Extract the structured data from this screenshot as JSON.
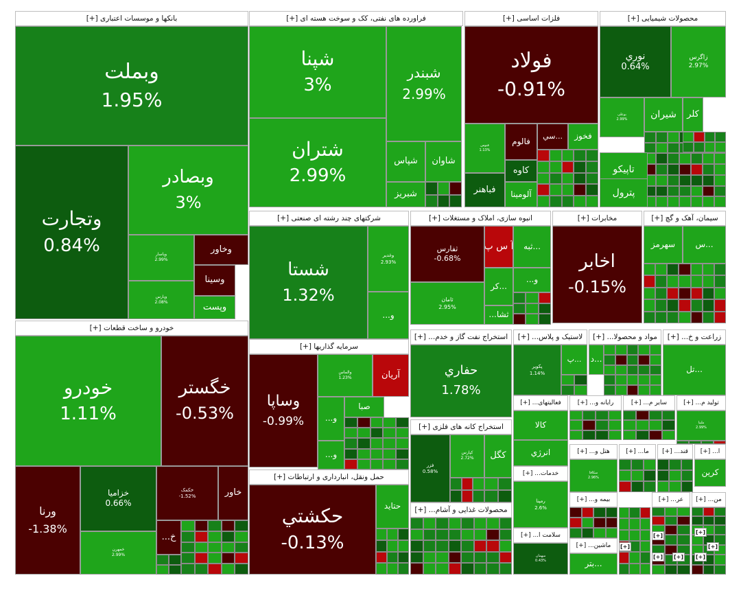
{
  "colors": {
    "bright_green": "#1fa51b",
    "mid_green": "#17811a",
    "dark_green": "#0d5c0f",
    "dark_red": "#4b0101",
    "red": "#b9070a",
    "header_bg": "#ffffff"
  },
  "chart_data": {
    "type": "treemap",
    "title": "",
    "sectors": [
      {
        "name": "بانکها و موسسات اعتباری [+]",
        "stocks": [
          {
            "name": "وبملت",
            "change": "1.95%"
          },
          {
            "name": "وتجارت",
            "change": "0.84%"
          },
          {
            "name": "وبصادر",
            "change": "3%"
          },
          {
            "name": "وخاور",
            "change": ""
          },
          {
            "name": "وپاسار",
            "change": "2.99%"
          },
          {
            "name": "وسینا",
            "change": ""
          },
          {
            "name": "وپارس",
            "change": "2.08%"
          },
          {
            "name": "وپست",
            "change": ""
          }
        ]
      },
      {
        "name": "فراورده های نفتی، کک و سوخت هسته ای [+]",
        "stocks": [
          {
            "name": "شپنا",
            "change": "3%"
          },
          {
            "name": "شبندر",
            "change": "2.99%"
          },
          {
            "name": "شتران",
            "change": "2.99%"
          },
          {
            "name": "شاوان",
            "change": ""
          },
          {
            "name": "شپاس",
            "change": ""
          },
          {
            "name": "شبریز",
            "change": ""
          }
        ]
      },
      {
        "name": "فلزات اساسی [+]",
        "stocks": [
          {
            "name": "فولاد",
            "change": "-0.91%"
          },
          {
            "name": "فخوز",
            "change": ""
          },
          {
            "name": "...سي",
            "change": ""
          },
          {
            "name": "فالوم",
            "change": ""
          },
          {
            "name": "فنوس",
            "change": "1.13%"
          },
          {
            "name": "کاوه",
            "change": ""
          },
          {
            "name": "آلومینا",
            "change": ""
          },
          {
            "name": "فباهنر",
            "change": ""
          }
        ]
      },
      {
        "name": "محصولات شیمیایی [+]",
        "stocks": [
          {
            "name": "نوري",
            "change": "0.64%"
          },
          {
            "name": "زاگرس",
            "change": "2.97%"
          },
          {
            "name": "بوعلی",
            "change": "2.99%"
          },
          {
            "name": "شیران",
            "change": ""
          },
          {
            "name": "کلر",
            "change": ""
          },
          {
            "name": "تاپیکو",
            "change": ""
          },
          {
            "name": "پترول",
            "change": ""
          }
        ]
      },
      {
        "name": "شرکتهای چند رشته ای صنعتی [+]",
        "stocks": [
          {
            "name": "شستا",
            "change": "1.32%"
          },
          {
            "name": "وغدیر",
            "change": "2.93%"
          },
          {
            "name": "و...",
            "change": ""
          }
        ]
      },
      {
        "name": "انبوه سازی، املاک و مستغلات [+]",
        "stocks": [
          {
            "name": "ثفارس",
            "change": "-0.68%"
          },
          {
            "name": "آ س پ",
            "change": ""
          },
          {
            "name": "...ثبه",
            "change": ""
          },
          {
            "name": "ثامان",
            "change": "2.95%"
          },
          {
            "name": "و...",
            "change": ""
          },
          {
            "name": "...کر",
            "change": ""
          },
          {
            "name": "ثشا...",
            "change": ""
          }
        ]
      },
      {
        "name": "مخابرات [+]",
        "stocks": [
          {
            "name": "اخابر",
            "change": "-0.15%"
          }
        ]
      },
      {
        "name": "سیمان، آهک و گچ [+]",
        "stocks": [
          {
            "name": "سهرمز",
            "change": ""
          },
          {
            "name": "...س",
            "change": ""
          }
        ]
      },
      {
        "name": "خودرو و ساخت قطعات [+]",
        "stocks": [
          {
            "name": "خودرو",
            "change": "1.11%"
          },
          {
            "name": "خگستر",
            "change": "-0.53%"
          },
          {
            "name": "ورنا",
            "change": "-1.38%"
          },
          {
            "name": "خزامیا",
            "change": "0.66%"
          },
          {
            "name": "خمهرن",
            "change": "2.99%"
          },
          {
            "name": "خکمک",
            "change": "-1.52%"
          },
          {
            "name": "خاور",
            "change": ""
          },
          {
            "name": "خ...",
            "change": ""
          }
        ]
      },
      {
        "name": "سرمایه گذاریها [+]",
        "stocks": [
          {
            "name": "وساپا",
            "change": "-0.99%"
          },
          {
            "name": "والماس",
            "change": "1.23%"
          },
          {
            "name": "آریان",
            "change": ""
          },
          {
            "name": "صبا",
            "change": ""
          },
          {
            "name": "و...",
            "change": ""
          },
          {
            "name": "و...",
            "change": ""
          }
        ]
      },
      {
        "name": "حمل ونقل، انبارداری و ارتباطات [+]",
        "stocks": [
          {
            "name": "حکشتي",
            "change": "-0.13%"
          },
          {
            "name": "حتاید",
            "change": ""
          }
        ]
      },
      {
        "name": "استخراج نفت گاز و خدم... [+]",
        "stocks": [
          {
            "name": "حفاري",
            "change": "1.78%"
          }
        ]
      },
      {
        "name": "استخراج کانه های فلزی [+]",
        "stocks": [
          {
            "name": "فزر",
            "change": "0.58%"
          },
          {
            "name": "کپارس",
            "change": "2.72%"
          },
          {
            "name": "کگل",
            "change": ""
          }
        ]
      },
      {
        "name": "محصولات غذایی و آشام... [+]",
        "stocks": []
      },
      {
        "name": "لاستیک و پلاس... [+]",
        "stocks": [
          {
            "name": "پکویر",
            "change": "1.14%"
          },
          {
            "name": "...پ",
            "change": ""
          }
        ]
      },
      {
        "name": "مواد و محصولا... [+]",
        "stocks": [
          {
            "name": "...د",
            "change": ""
          }
        ]
      },
      {
        "name": "زراعت و خ... [+]",
        "stocks": [
          {
            "name": "...تل",
            "change": ""
          }
        ]
      },
      {
        "name": "فعالیتهای... [+]",
        "stocks": [
          {
            "name": "کالا",
            "change": ""
          },
          {
            "name": "انرژي",
            "change": ""
          }
        ]
      },
      {
        "name": "رایانه و... [+]",
        "stocks": []
      },
      {
        "name": "سایر م... [+]",
        "stocks": []
      },
      {
        "name": "تولید م... [+]",
        "stocks": [
          {
            "name": "ملیبا",
            "change": "2.99%"
          }
        ]
      },
      {
        "name": "خدمات... [+]",
        "stocks": [
          {
            "name": "رمپنا",
            "change": "2.6%"
          }
        ]
      },
      {
        "name": "هتل و... [+]",
        "stocks": [
          {
            "name": "سکافا",
            "change": "2.96%"
          }
        ]
      },
      {
        "name": "ما... [+]",
        "stocks": []
      },
      {
        "name": "قند... [+]",
        "stocks": []
      },
      {
        "name": "ا... [+]",
        "stocks": [
          {
            "name": "کرين",
            "change": ""
          }
        ]
      },
      {
        "name": "بیمه و... [+]",
        "stocks": []
      },
      {
        "name": "عر... [+]",
        "stocks": []
      },
      {
        "name": "من... [+]",
        "stocks": []
      },
      {
        "name": "سلامت ا... [+]",
        "stocks": [
          {
            "name": "میهمان",
            "change": "0.43%"
          }
        ]
      },
      {
        "name": "ماشین... [+]",
        "stocks": [
          {
            "name": "...بتر",
            "change": ""
          }
        ]
      }
    ]
  }
}
